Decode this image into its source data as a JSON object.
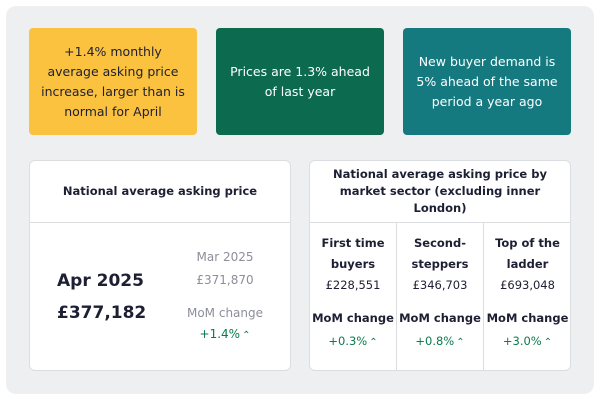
{
  "tiles": [
    {
      "text": "+1.4% monthly average asking price increase, larger than is normal for April"
    },
    {
      "text": "Prices are 1.3% ahead of last year"
    },
    {
      "text": "New buyer demand is 5% ahead of the same period a year ago"
    }
  ],
  "national": {
    "title": "National average asking price",
    "current_period": "Apr 2025",
    "current_value": "£377,182",
    "prev_period": "Mar 2025",
    "prev_value": "£371,870",
    "mom_label": "MoM change",
    "mom_value": "+1.4%"
  },
  "sector": {
    "title": "National average asking price by market sector (excluding inner London)",
    "columns": [
      {
        "label": "First time buyers",
        "value": "£228,551",
        "mom_label": "MoM change",
        "mom_value": "+0.3%"
      },
      {
        "label": "Second-steppers",
        "value": "£346,703",
        "mom_label": "MoM change",
        "mom_value": "+0.8%"
      },
      {
        "label": "Top of the ladder",
        "value": "£693,048",
        "mom_label": "MoM change",
        "mom_value": "+3.0%"
      }
    ]
  },
  "icons": {
    "increase": "chevron-up-icon"
  },
  "colors": {
    "yellow": "#fbc23f",
    "green": "#0c6a4f",
    "teal": "#147a80",
    "positive": "#0c7a4f"
  }
}
